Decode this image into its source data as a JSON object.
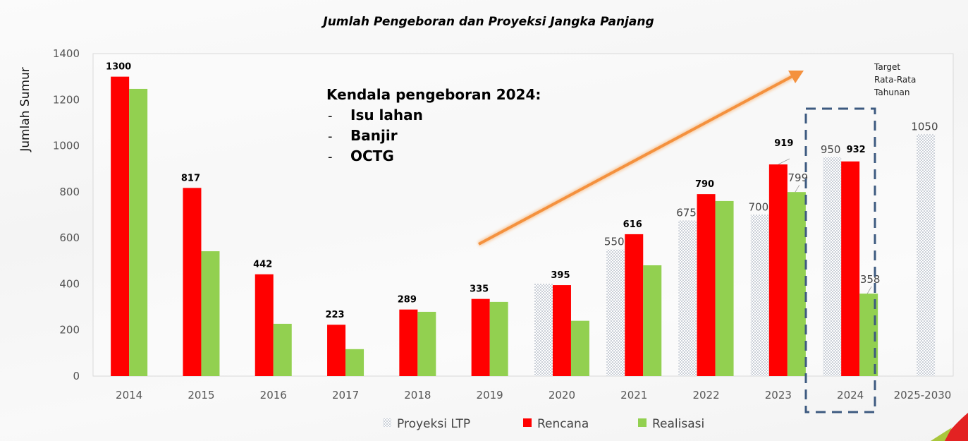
{
  "chart_data": {
    "type": "bar",
    "title": "Jumlah Pengeboran dan Proyeksi Jangka Panjang",
    "xlabel": "",
    "ylabel": "Jumlah Sumur",
    "ylim": [
      0,
      1400
    ],
    "yticks": [
      0,
      200,
      400,
      600,
      800,
      1000,
      1200,
      1400
    ],
    "grid": false,
    "legend_position": "bottom",
    "categories": [
      "2014",
      "2015",
      "2016",
      "2017",
      "2018",
      "2019",
      "2020",
      "2021",
      "2022",
      "2023",
      "2024",
      "2025-2030"
    ],
    "series": [
      {
        "name": "Proyeksi LTP",
        "color": "#9aa7b8",
        "pattern": "dotted",
        "values": [
          null,
          null,
          null,
          null,
          null,
          null,
          400,
          550,
          675,
          700,
          950,
          1050
        ],
        "labels": [
          null,
          null,
          null,
          null,
          null,
          null,
          null,
          "550",
          "675",
          "700",
          "950",
          "1050"
        ]
      },
      {
        "name": "Rencana",
        "color": "#ff0000",
        "values": [
          1300,
          817,
          442,
          223,
          289,
          335,
          395,
          616,
          790,
          919,
          932,
          null
        ],
        "labels": [
          "1300",
          "817",
          "442",
          "223",
          "289",
          "335",
          "395",
          "616",
          "790",
          "919",
          "932",
          null
        ]
      },
      {
        "name": "Realisasi",
        "color": "#92d050",
        "values": [
          1247,
          542,
          227,
          117,
          279,
          322,
          240,
          481,
          760,
          799,
          358,
          null
        ],
        "labels": [
          null,
          null,
          null,
          null,
          null,
          null,
          null,
          null,
          null,
          "799",
          "358",
          null
        ]
      }
    ],
    "annotations": {
      "note_title": "Kendala pengeboran 2024:",
      "note_items": [
        "Isu lahan",
        "Banjir",
        "OCTG"
      ],
      "note_bullet": "-",
      "target_note": [
        "Target",
        "Rata-Rata",
        "Tahunan"
      ],
      "trend_arrow_color": "#f4913e",
      "highlight_box_color": "#3d5a80",
      "highlight_category": "2024"
    }
  }
}
